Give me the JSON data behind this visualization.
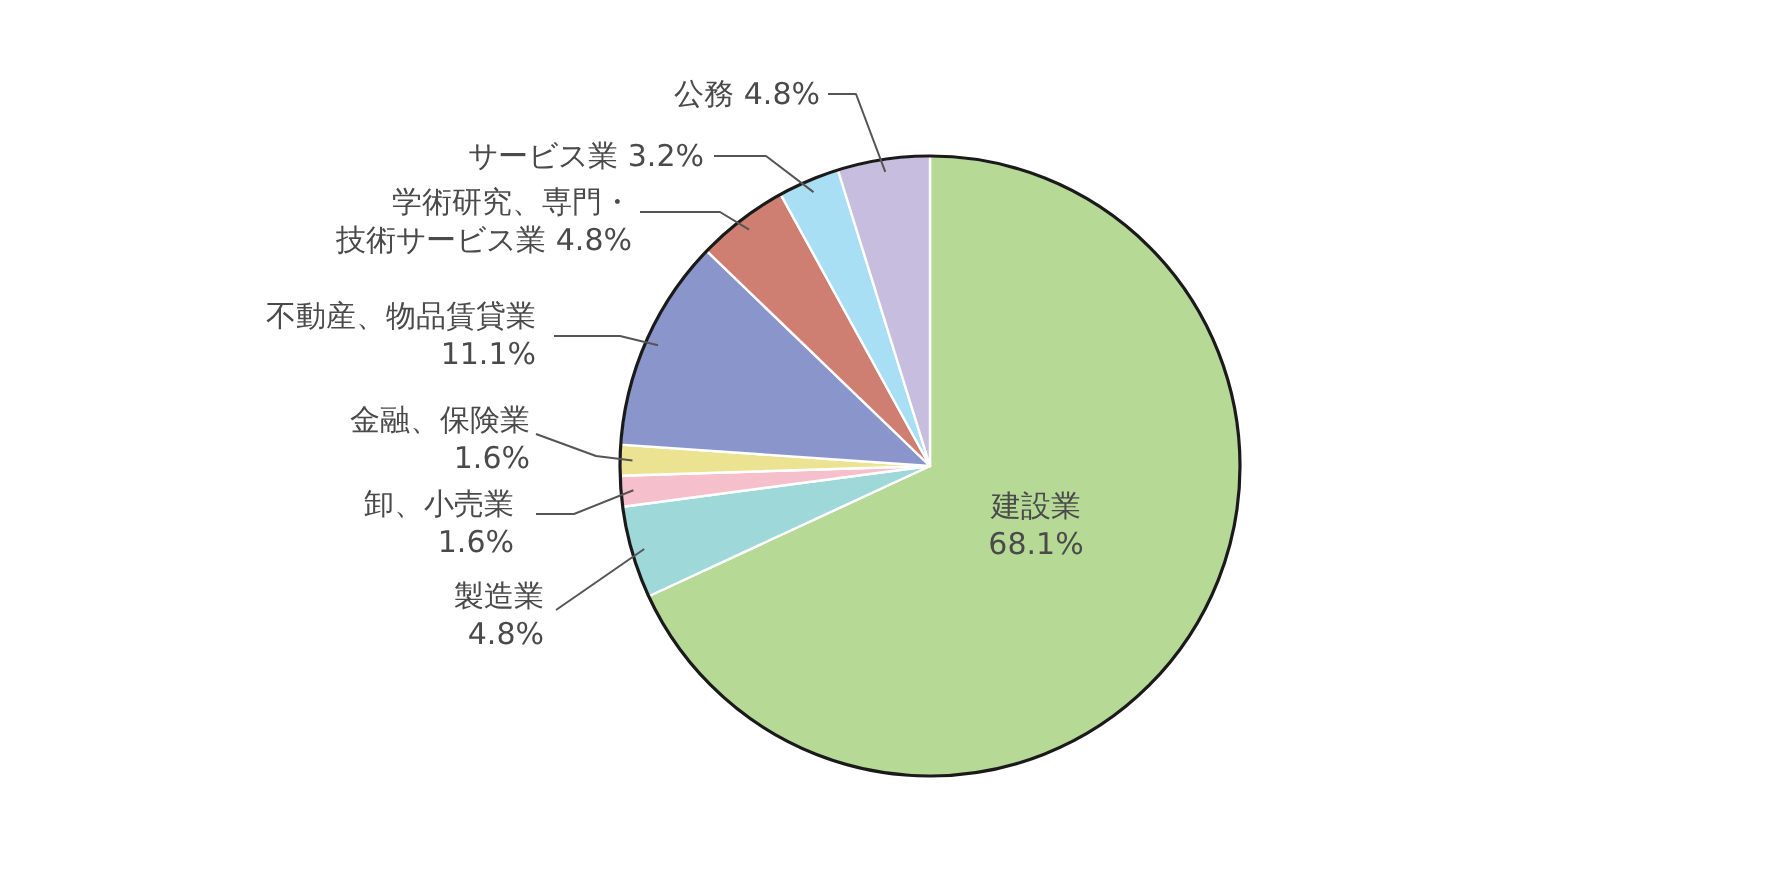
{
  "chart_data": {
    "type": "pie",
    "categories": [
      "建設業",
      "製造業",
      "卸、小売業",
      "金融、保険業",
      "不動産、物品賃貸業",
      "学術研究、専門・技術サービス業",
      "サービス業",
      "公務"
    ],
    "values": [
      68.1,
      4.8,
      1.6,
      1.6,
      11.1,
      4.8,
      3.2,
      4.8
    ],
    "colors": [
      "#b6d996",
      "#9ed8d8",
      "#f6bfcc",
      "#ebe391",
      "#8a96cb",
      "#cf7f72",
      "#a8dff5",
      "#c7bddf"
    ],
    "value_labels": [
      "68.1%",
      "4.8%",
      "1.6%",
      "1.6%",
      "11.1%",
      "4.8%",
      "3.2%",
      "4.8%"
    ]
  }
}
